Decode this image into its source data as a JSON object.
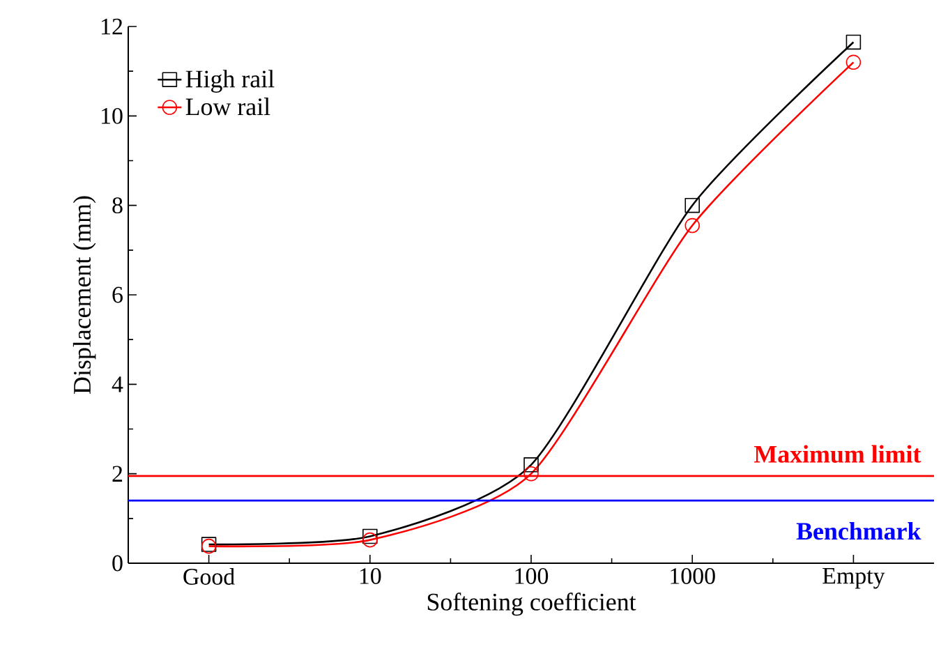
{
  "chart_data": {
    "type": "line",
    "xlabel": "Softening coefficient",
    "ylabel": "Displacement (mm)",
    "categories": [
      "Good",
      "10",
      "100",
      "1000",
      "Empty"
    ],
    "series": [
      {
        "name": "High rail",
        "color": "#000000",
        "marker": "square",
        "values": [
          0.42,
          0.6,
          2.2,
          8.0,
          11.65
        ]
      },
      {
        "name": "Low rail",
        "color": "#ff0000",
        "marker": "circle",
        "values": [
          0.38,
          0.52,
          2.0,
          7.55,
          11.2
        ]
      }
    ],
    "ylim": [
      0,
      12
    ],
    "yticks": [
      0,
      2,
      4,
      6,
      8,
      10,
      12
    ],
    "ref_lines": [
      {
        "axis": "y",
        "value": 1.95,
        "label": "Maximum limit",
        "color": "#ff0000"
      },
      {
        "axis": "y",
        "value": 1.4,
        "label": "Benchmark",
        "color": "#0000ff"
      }
    ],
    "legend": "top left",
    "grid": false
  }
}
